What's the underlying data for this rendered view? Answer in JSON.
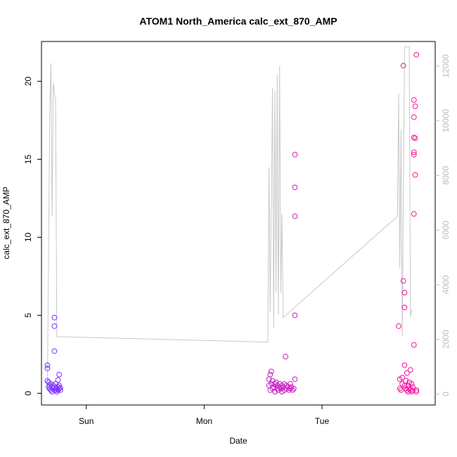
{
  "chart_data": {
    "type": "scatter",
    "title": "ATOM1 North_America calc_ext_870_AMP",
    "xlabel": "Date",
    "ylabel": "calc_ext_870_AMP",
    "x_ticks": [
      {
        "label": "Sun",
        "x": 0.0
      },
      {
        "label": "Mon",
        "x": 1.0
      },
      {
        "label": "Tue",
        "x": 2.0
      }
    ],
    "xlim": [
      -0.38,
      2.96
    ],
    "ylim": [
      -0.75,
      22.55
    ],
    "y_ticks": [
      0,
      5,
      10,
      15,
      20
    ],
    "y2lim": [
      -400,
      12900
    ],
    "y2_ticks": [
      0,
      2000,
      4000,
      6000,
      8000,
      10000,
      12000
    ],
    "colors": {
      "series_start": "#7733ff",
      "series_end": "#ff1199",
      "secondary_line": "#c8c8c8",
      "frame": "#000000",
      "secondary_axis": "#bdbdbd"
    },
    "series": [
      {
        "values": [
          [
            -0.33,
            0.8
          ],
          [
            -0.33,
            1.8
          ],
          [
            -0.33,
            1.6
          ],
          [
            -0.32,
            0.4
          ],
          [
            -0.32,
            0.7
          ],
          [
            -0.31,
            0.3
          ],
          [
            -0.31,
            0.5
          ],
          [
            -0.3,
            0.2
          ],
          [
            -0.3,
            0.6
          ],
          [
            -0.29,
            0.4
          ],
          [
            -0.29,
            0.1
          ],
          [
            -0.28,
            0.3
          ],
          [
            -0.28,
            0.5
          ],
          [
            -0.27,
            0.2
          ],
          [
            -0.27,
            0.4
          ],
          [
            -0.27,
            4.85
          ],
          [
            -0.27,
            4.3
          ],
          [
            -0.27,
            2.7
          ],
          [
            -0.26,
            0.2
          ],
          [
            -0.26,
            0.6
          ],
          [
            -0.25,
            0.3
          ],
          [
            -0.25,
            0.1
          ],
          [
            -0.24,
            0.4
          ],
          [
            -0.24,
            0.2
          ],
          [
            -0.24,
            0.85
          ],
          [
            -0.23,
            0.3
          ],
          [
            -0.23,
            0.5
          ],
          [
            -0.23,
            1.2
          ],
          [
            -0.22,
            0.2
          ],
          [
            -0.22,
            0.35
          ]
        ]
      },
      {
        "values": [
          [
            1.55,
            0.9
          ],
          [
            1.55,
            0.5
          ],
          [
            1.56,
            1.2
          ],
          [
            1.56,
            0.2
          ],
          [
            1.57,
            0.6
          ],
          [
            1.57,
            1.4
          ],
          [
            1.58,
            0.3
          ],
          [
            1.58,
            0.8
          ],
          [
            1.59,
            0.4
          ],
          [
            1.6,
            0.6
          ],
          [
            1.6,
            0.1
          ],
          [
            1.61,
            0.7
          ],
          [
            1.62,
            0.3
          ],
          [
            1.62,
            0.5
          ],
          [
            1.63,
            0.2
          ],
          [
            1.64,
            0.4
          ],
          [
            1.64,
            0.6
          ],
          [
            1.65,
            0.3
          ],
          [
            1.66,
            0.5
          ],
          [
            1.66,
            0.1
          ],
          [
            1.67,
            0.4
          ],
          [
            1.68,
            0.6
          ],
          [
            1.68,
            0.2
          ],
          [
            1.69,
            2.35
          ],
          [
            1.7,
            0.3
          ],
          [
            1.7,
            0.5
          ],
          [
            1.71,
            0.4
          ],
          [
            1.72,
            0.2
          ],
          [
            1.73,
            0.6
          ],
          [
            1.73,
            0.3
          ],
          [
            1.74,
            0.4
          ],
          [
            1.75,
            0.2
          ],
          [
            1.77,
            15.3
          ],
          [
            1.77,
            13.2
          ],
          [
            1.77,
            11.35
          ],
          [
            1.77,
            5.0
          ],
          [
            1.77,
            0.9
          ],
          [
            1.76,
            0.3
          ]
        ]
      },
      {
        "values": [
          [
            2.65,
            4.3
          ],
          [
            2.66,
            0.3
          ],
          [
            2.66,
            0.9
          ],
          [
            2.67,
            0.2
          ],
          [
            2.68,
            0.6
          ],
          [
            2.68,
            1.0
          ],
          [
            2.69,
            21.0
          ],
          [
            2.69,
            7.2
          ],
          [
            2.7,
            6.45
          ],
          [
            2.7,
            5.5
          ],
          [
            2.7,
            1.8
          ],
          [
            2.7,
            0.5
          ],
          [
            2.71,
            0.3
          ],
          [
            2.71,
            0.8
          ],
          [
            2.72,
            0.2
          ],
          [
            2.72,
            1.3
          ],
          [
            2.73,
            0.5
          ],
          [
            2.73,
            0.1
          ],
          [
            2.74,
            0.7
          ],
          [
            2.74,
            0.3
          ],
          [
            2.75,
            1.5
          ],
          [
            2.75,
            0.2
          ],
          [
            2.76,
            0.6
          ],
          [
            2.76,
            0.1
          ],
          [
            2.77,
            0.4
          ],
          [
            2.77,
            0.2
          ],
          [
            2.78,
            16.4
          ],
          [
            2.78,
            15.3
          ],
          [
            2.78,
            15.45
          ],
          [
            2.78,
            17.7
          ],
          [
            2.78,
            18.8
          ],
          [
            2.78,
            11.5
          ],
          [
            2.78,
            3.1
          ],
          [
            2.79,
            18.4
          ],
          [
            2.79,
            16.35
          ],
          [
            2.79,
            14.0
          ],
          [
            2.8,
            21.7
          ],
          [
            2.8,
            0.2
          ],
          [
            2.8,
            0.1
          ]
        ]
      },
      {
        "axis": "right",
        "style": "line",
        "values": [
          [
            -0.33,
            100
          ],
          [
            -0.31,
            10200
          ],
          [
            -0.3,
            12100
          ],
          [
            -0.29,
            6500
          ],
          [
            -0.28,
            11400
          ],
          [
            -0.27,
            11000
          ],
          [
            -0.26,
            10700
          ],
          [
            -0.25,
            2100
          ],
          [
            1.54,
            1900
          ],
          [
            1.55,
            8300
          ],
          [
            1.56,
            3000
          ],
          [
            1.58,
            11200
          ],
          [
            1.59,
            2400
          ],
          [
            1.6,
            11100
          ],
          [
            1.61,
            3700
          ],
          [
            1.62,
            11700
          ],
          [
            1.63,
            2900
          ],
          [
            1.64,
            12000
          ],
          [
            1.65,
            3700
          ],
          [
            1.66,
            6600
          ],
          [
            1.67,
            2800
          ],
          [
            2.64,
            6500
          ],
          [
            2.65,
            11000
          ],
          [
            2.66,
            4600
          ],
          [
            2.67,
            9700
          ],
          [
            2.68,
            2100
          ],
          [
            2.7,
            12700
          ],
          [
            2.74,
            12700
          ],
          [
            2.75,
            2800
          ],
          [
            2.76,
            3100
          ]
        ]
      }
    ]
  }
}
